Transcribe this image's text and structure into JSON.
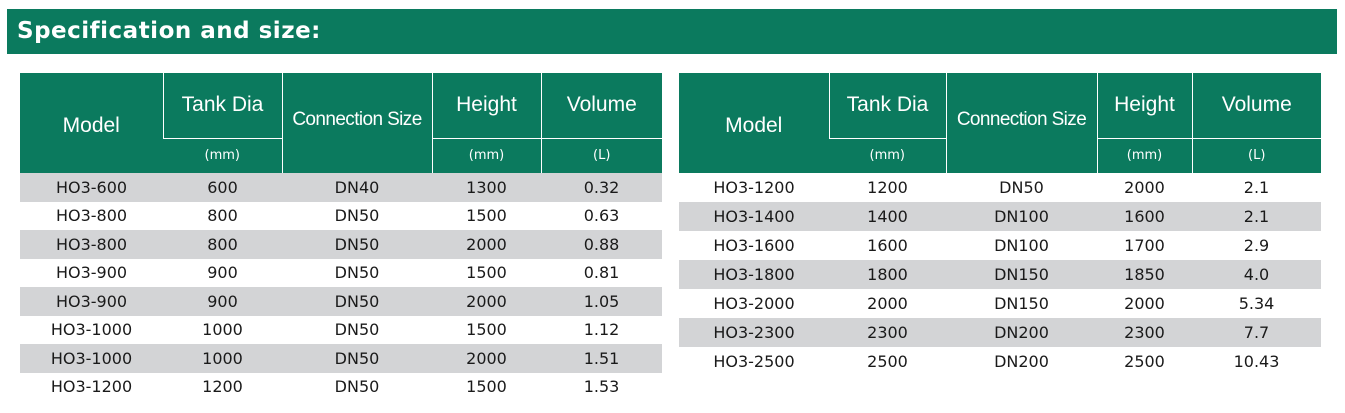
{
  "page_title": "Specification and size:",
  "headers": {
    "model": "Model",
    "tank_dia": "Tank Dia",
    "connection_size": "Connection Size",
    "height": "Height",
    "volume": "Volume",
    "unit_mm": "(mm)",
    "unit_l": "(L)"
  },
  "left_table": [
    {
      "model": "HO3-600",
      "tank_dia": "600",
      "connection": "DN40",
      "height": "1300",
      "volume": "0.32"
    },
    {
      "model": "HO3-800",
      "tank_dia": "800",
      "connection": "DN50",
      "height": "1500",
      "volume": "0.63"
    },
    {
      "model": "HO3-800",
      "tank_dia": "800",
      "connection": "DN50",
      "height": "2000",
      "volume": "0.88"
    },
    {
      "model": "HO3-900",
      "tank_dia": "900",
      "connection": "DN50",
      "height": "1500",
      "volume": "0.81"
    },
    {
      "model": "HO3-900",
      "tank_dia": "900",
      "connection": "DN50",
      "height": "2000",
      "volume": "1.05"
    },
    {
      "model": "HO3-1000",
      "tank_dia": "1000",
      "connection": "DN50",
      "height": "1500",
      "volume": "1.12"
    },
    {
      "model": "HO3-1000",
      "tank_dia": "1000",
      "connection": "DN50",
      "height": "2000",
      "volume": "1.51"
    },
    {
      "model": "HO3-1200",
      "tank_dia": "1200",
      "connection": "DN50",
      "height": "1500",
      "volume": "1.53"
    }
  ],
  "right_table": [
    {
      "model": "HO3-1200",
      "tank_dia": "1200",
      "connection": "DN50",
      "height": "2000",
      "volume": "2.1"
    },
    {
      "model": "HO3-1400",
      "tank_dia": "1400",
      "connection": "DN100",
      "height": "1600",
      "volume": "2.1"
    },
    {
      "model": "HO3-1600",
      "tank_dia": "1600",
      "connection": "DN100",
      "height": "1700",
      "volume": "2.9"
    },
    {
      "model": "HO3-1800",
      "tank_dia": "1800",
      "connection": "DN150",
      "height": "1850",
      "volume": "4.0"
    },
    {
      "model": "HO3-2000",
      "tank_dia": "2000",
      "connection": "DN150",
      "height": "2000",
      "volume": "5.34"
    },
    {
      "model": "HO3-2300",
      "tank_dia": "2300",
      "connection": "DN200",
      "height": "2300",
      "volume": "7.7"
    },
    {
      "model": "HO3-2500",
      "tank_dia": "2500",
      "connection": "DN200",
      "height": "2500",
      "volume": "10.43"
    }
  ]
}
